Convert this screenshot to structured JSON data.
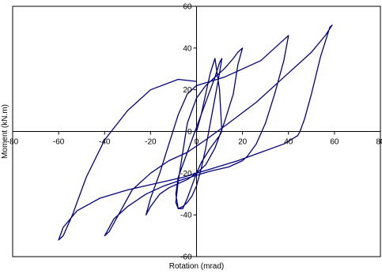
{
  "chart_data": {
    "type": "line",
    "title": "",
    "xlabel": "Rotation (mrad)",
    "ylabel": "Moment (kN.m)",
    "xlim": [
      -80,
      80
    ],
    "ylim": [
      -60,
      60
    ],
    "x_ticks": [
      -80,
      -60,
      -40,
      -20,
      0,
      20,
      40,
      60,
      80
    ],
    "y_ticks": [
      -60,
      -40,
      -20,
      0,
      20,
      40,
      60
    ],
    "x_tick_labels": [
      "-80",
      "-60",
      "-40",
      "-20",
      "0",
      "20",
      "40",
      "60",
      "80"
    ],
    "y_tick_labels": [
      "-60",
      "-40",
      "-20",
      "0",
      "20",
      "40",
      "60"
    ],
    "grid": false,
    "legend": "none",
    "line_color": "#000080",
    "series": [
      {
        "x": [
          0,
          2,
          4,
          6,
          8,
          10,
          11,
          10,
          6,
          2,
          0,
          -2,
          -4,
          -6,
          -8,
          -9,
          -8,
          -4,
          0,
          4,
          8,
          10,
          11,
          10,
          8,
          6,
          4,
          2,
          0,
          -2,
          -4,
          -6,
          -8,
          -9,
          -8,
          -6,
          -4,
          0,
          4,
          8,
          12,
          16,
          18,
          20,
          18,
          16,
          12,
          8,
          4,
          0,
          -4,
          -8,
          -12,
          -16,
          -20,
          -22,
          -20,
          -16,
          -12,
          -8,
          -4,
          0,
          6,
          12,
          20,
          28,
          34,
          38,
          40,
          38,
          34,
          30,
          26,
          22,
          20,
          14,
          6,
          0,
          -6,
          -14,
          -22,
          -30,
          -36,
          -40,
          -38,
          -34,
          -28,
          -20,
          -12,
          -4,
          4,
          14,
          26,
          38,
          50,
          56,
          59,
          58,
          54,
          50,
          47,
          45,
          44,
          38,
          28,
          18,
          6,
          -6,
          -18,
          -30,
          -42,
          -52,
          -58,
          -60,
          -58,
          -54,
          -48,
          -40,
          -30,
          -20,
          -8,
          0
        ],
        "y": [
          0,
          8,
          18,
          28,
          35,
          20,
          0,
          -2,
          -8,
          -15,
          -20,
          -26,
          -32,
          -37,
          -37,
          -30,
          -22,
          -10,
          2,
          14,
          26,
          33,
          35,
          28,
          16,
          4,
          -8,
          -18,
          -26,
          -31,
          -34,
          -36,
          -37,
          -34,
          -24,
          -10,
          4,
          16,
          22,
          26,
          30,
          35,
          38,
          40,
          32,
          18,
          4,
          -8,
          -16,
          -20,
          -23,
          -25,
          -27,
          -30,
          -36,
          -40,
          -32,
          -20,
          -6,
          8,
          18,
          22,
          24,
          26,
          30,
          34,
          40,
          44,
          46,
          34,
          18,
          4,
          -6,
          -12,
          -14,
          -17,
          -19,
          -21,
          -23,
          -26,
          -30,
          -36,
          -42,
          -50,
          -48,
          -40,
          -28,
          -20,
          -14,
          -10,
          -4,
          4,
          14,
          26,
          38,
          46,
          51,
          50,
          36,
          18,
          6,
          0,
          -2,
          -6,
          -10,
          -14,
          -18,
          -22,
          -25,
          -28,
          -32,
          -38,
          -46,
          -52,
          -50,
          -40,
          -22,
          -4,
          10,
          20,
          25,
          24
        ]
      }
    ]
  }
}
